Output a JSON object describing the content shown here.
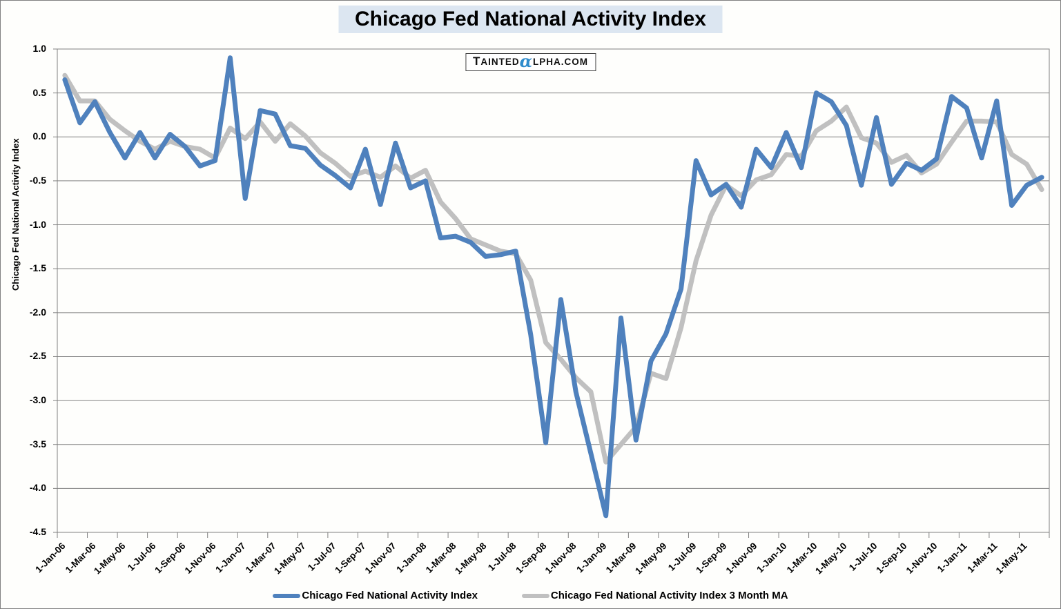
{
  "title": {
    "text": "Chicago Fed National Activity Index"
  },
  "watermark": {
    "part1": "T",
    "part2": "AINTED",
    "alpha": "α",
    "part3": "LPHA.COM"
  },
  "colors": {
    "index_line": "#4f81bd",
    "ma_line": "#c0c0c0",
    "gridline": "#808080",
    "title_bg": "#dce6f1",
    "watermark_alpha": "#2f8ccc",
    "text": "#000000"
  },
  "y_axis": {
    "title": "Chicago Fed National Activity Index",
    "tick_labels": [
      "1.0",
      "0.5",
      "0.0",
      "-0.5",
      "-1.0",
      "-1.5",
      "-2.0",
      "-2.5",
      "-3.0",
      "-3.5",
      "-4.0",
      "-4.5"
    ]
  },
  "x_axis": {
    "tick_labels": [
      "1-Jan-06",
      "1-Mar-06",
      "1-May-06",
      "1-Jul-06",
      "1-Sep-06",
      "1-Nov-06",
      "1-Jan-07",
      "1-Mar-07",
      "1-May-07",
      "1-Jul-07",
      "1-Sep-07",
      "1-Nov-07",
      "1-Jan-08",
      "1-Mar-08",
      "1-May-08",
      "1-Jul-08",
      "1-Sep-08",
      "1-Nov-08",
      "1-Jan-09",
      "1-Mar-09",
      "1-May-09",
      "1-Jul-09",
      "1-Sep-09",
      "1-Nov-09",
      "1-Jan-10",
      "1-Mar-10",
      "1-May-10",
      "1-Jul-10",
      "1-Sep-10",
      "1-Nov-10",
      "1-Jan-11",
      "1-Mar-11",
      "1-May-11"
    ]
  },
  "legend": {
    "items": [
      {
        "label": "Chicago Fed National Activity Index",
        "color": "#4f81bd"
      },
      {
        "label": "Chicago Fed National Activity Index 3 Month MA",
        "color": "#c0c0c0"
      }
    ]
  },
  "chart_data": {
    "type": "line",
    "title": "Chicago Fed National Activity Index",
    "xlabel": "",
    "ylabel": "Chicago Fed National Activity Index",
    "ylim": [
      -4.5,
      1.0
    ],
    "ytick_step": 0.5,
    "grid": true,
    "legend_position": "bottom",
    "xtick_label_interval": 2,
    "x": [
      "Jan-06",
      "Feb-06",
      "Mar-06",
      "Apr-06",
      "May-06",
      "Jun-06",
      "Jul-06",
      "Aug-06",
      "Sep-06",
      "Oct-06",
      "Nov-06",
      "Dec-06",
      "Jan-07",
      "Feb-07",
      "Mar-07",
      "Apr-07",
      "May-07",
      "Jun-07",
      "Jul-07",
      "Aug-07",
      "Sep-07",
      "Oct-07",
      "Nov-07",
      "Dec-07",
      "Jan-08",
      "Feb-08",
      "Mar-08",
      "Apr-08",
      "May-08",
      "Jun-08",
      "Jul-08",
      "Aug-08",
      "Sep-08",
      "Oct-08",
      "Nov-08",
      "Dec-08",
      "Jan-09",
      "Feb-09",
      "Mar-09",
      "Apr-09",
      "May-09",
      "Jun-09",
      "Jul-09",
      "Aug-09",
      "Sep-09",
      "Oct-09",
      "Nov-09",
      "Dec-09",
      "Jan-10",
      "Feb-10",
      "Mar-10",
      "Apr-10",
      "May-10",
      "Jun-10",
      "Jul-10",
      "Aug-10",
      "Sep-10",
      "Oct-10",
      "Nov-10",
      "Dec-10",
      "Jan-11",
      "Feb-11",
      "Mar-11",
      "Apr-11",
      "May-11",
      "Jun-11"
    ],
    "series": [
      {
        "name": "Chicago Fed National Activity Index",
        "color": "#4f81bd",
        "values": [
          0.65,
          0.16,
          0.4,
          0.05,
          -0.24,
          0.05,
          -0.24,
          0.03,
          -0.11,
          -0.33,
          -0.27,
          0.9,
          -0.7,
          0.3,
          0.26,
          -0.1,
          -0.13,
          -0.32,
          -0.44,
          -0.58,
          -0.14,
          -0.77,
          -0.07,
          -0.58,
          -0.5,
          -1.15,
          -1.13,
          -1.2,
          -1.36,
          -1.34,
          -1.3,
          -2.25,
          -3.48,
          -1.85,
          -2.9,
          -3.6,
          -4.31,
          -2.06,
          -3.45,
          -2.55,
          -2.24,
          -1.73,
          -0.27,
          -0.66,
          -0.54,
          -0.8,
          -0.14,
          -0.35,
          0.05,
          -0.35,
          0.5,
          0.4,
          0.13,
          -0.55,
          0.22,
          -0.54,
          -0.3,
          -0.38,
          -0.25,
          0.46,
          0.33,
          -0.24,
          0.41,
          -0.78,
          -0.55,
          -0.46
        ]
      },
      {
        "name": "Chicago Fed National Activity Index 3 Month MA",
        "color": "#c0c0c0",
        "values": [
          0.7,
          0.41,
          0.41,
          0.2,
          0.07,
          -0.05,
          -0.14,
          -0.05,
          -0.11,
          -0.14,
          -0.24,
          0.1,
          -0.02,
          0.17,
          -0.05,
          0.15,
          0.01,
          -0.18,
          -0.3,
          -0.45,
          -0.39,
          -0.46,
          -0.33,
          -0.47,
          -0.38,
          -0.74,
          -0.93,
          -1.16,
          -1.23,
          -1.3,
          -1.33,
          -1.63,
          -2.34,
          -2.53,
          -2.74,
          -2.9,
          -3.7,
          -3.5,
          -3.3,
          -2.69,
          -2.75,
          -2.17,
          -1.41,
          -0.89,
          -0.55,
          -0.67,
          -0.49,
          -0.43,
          -0.2,
          -0.22,
          0.07,
          0.18,
          0.34,
          -0.01,
          -0.07,
          -0.29,
          -0.21,
          -0.41,
          -0.31,
          -0.06,
          0.18,
          0.18,
          0.17,
          -0.2,
          -0.31,
          -0.6
        ]
      }
    ]
  }
}
